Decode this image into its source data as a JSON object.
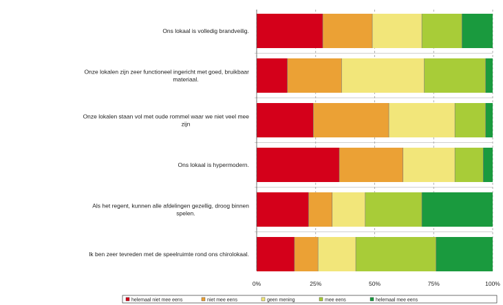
{
  "chart_data": {
    "type": "bar",
    "orientation": "horizontal",
    "stacked": true,
    "normalized_percent": true,
    "categories": [
      [
        "Ons lokaal is volledig brandveilig."
      ],
      [
        "Onze lokalen zijn zeer functioneel ingericht met goed, bruikbaar",
        "materiaal."
      ],
      [
        "Onze lokalen staan vol met oude rommel waar we niet veel mee",
        "zijn"
      ],
      [
        "Ons lokaal is hypermodern."
      ],
      [
        "Als het regent, kunnen alle afdelingen gezellig, droog binnen",
        "spelen."
      ],
      [
        "Ik ben zeer tevreden met de speelruimte rond ons chirolokaal."
      ]
    ],
    "series": [
      {
        "name": "helemaal niet mee eens",
        "color": "#d4001a",
        "values": [
          28,
          13,
          24,
          35,
          22,
          16
        ]
      },
      {
        "name": "niet mee eens",
        "color": "#eba135",
        "values": [
          21,
          23,
          32,
          27,
          10,
          10
        ]
      },
      {
        "name": "geen mening",
        "color": "#f2e67a",
        "values": [
          21,
          35,
          28,
          22,
          14,
          16
        ]
      },
      {
        "name": "mee eens",
        "color": "#a8cc38",
        "values": [
          17,
          26,
          13,
          12,
          24,
          34
        ]
      },
      {
        "name": "helemaal mee eens",
        "color": "#1a9a3e",
        "values": [
          13,
          3,
          3,
          4,
          30,
          24
        ]
      }
    ],
    "x_ticks": [
      "0%",
      "25%",
      "50%",
      "75%",
      "100%"
    ],
    "xlim": [
      0,
      100
    ],
    "legend_position": "bottom",
    "grid": "vertical dashed"
  }
}
